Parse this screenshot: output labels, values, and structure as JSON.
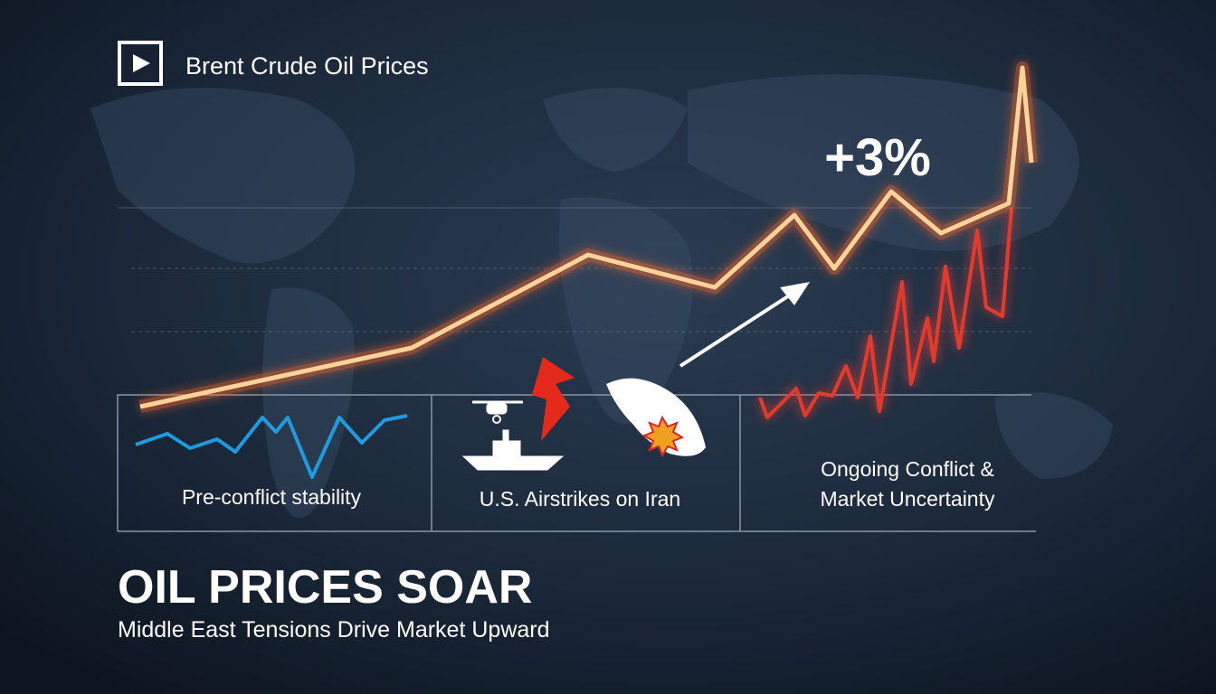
{
  "header": {
    "title": "Brent Crude Oil Prices"
  },
  "annotation": "+3%",
  "panels": [
    {
      "lines": [
        "Pre-conflict stability"
      ]
    },
    {
      "lines": [
        "U.S. Airstrikes on Iran"
      ]
    },
    {
      "lines": [
        "Ongoing Conflict &",
        "Market Uncertainty"
      ]
    }
  ],
  "headline": "OIL PRICES SOAR",
  "subheadline": "Middle East Tensions Drive Market Upward"
}
